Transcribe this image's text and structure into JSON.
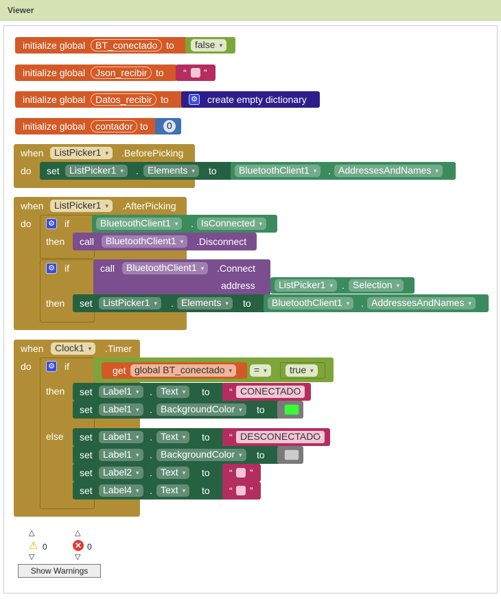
{
  "window": {
    "title": "Viewer"
  },
  "globals": [
    {
      "kw": "initialize global",
      "name": "BT_conectado",
      "to": "to",
      "value": "false"
    },
    {
      "kw": "initialize global",
      "name": "Json_recibir",
      "to": "to",
      "open_q": "“",
      "close_q": "”"
    },
    {
      "kw": "initialize global",
      "name": "Datos_recibir",
      "to": "to",
      "value": "create empty dictionary"
    },
    {
      "kw": "initialize global",
      "name": "contador",
      "to": "to",
      "value": "0"
    }
  ],
  "before": {
    "when": "when",
    "component": "ListPicker1",
    "event": ".BeforePicking",
    "do": "do",
    "set": "set",
    "set_comp": "ListPicker1",
    "dot": ".",
    "prop": "Elements",
    "to": "to",
    "src_comp": "BluetoothClient1",
    "src_prop": "AddressesAndNames"
  },
  "after": {
    "when": "when",
    "component": "ListPicker1",
    "event": ".AfterPicking",
    "do": "do",
    "if1": "if",
    "cond_comp": "BluetoothClient1",
    "dot": ".",
    "cond_prop": "IsConnected",
    "then1": "then",
    "call": "call",
    "call1_comp": "BluetoothClient1",
    "call1_method": ".Disconnect",
    "if2": "if",
    "call2_comp": "BluetoothClient1",
    "call2_method": ".Connect",
    "address": "address",
    "addr_comp": "ListPicker1",
    "addr_prop": "Selection",
    "then2": "then",
    "set": "set",
    "set_comp": "ListPicker1",
    "set_prop": "Elements",
    "to": "to",
    "src_comp": "BluetoothClient1",
    "src_prop": "AddressesAndNames"
  },
  "timer": {
    "when": "when",
    "component": "Clock1",
    "event": ".Timer",
    "do": "do",
    "if": "if",
    "get": "get",
    "get_var": "global BT_conectado",
    "op": "=",
    "val": "true",
    "then": "then",
    "else": "else",
    "set": "set",
    "dot": ".",
    "to": "to",
    "open_q": "“",
    "close_q": "”",
    "then_rows": [
      {
        "comp": "Label1",
        "prop": "Text",
        "text": "CONECTADO"
      },
      {
        "comp": "Label1",
        "prop": "BackgroundColor",
        "color": "#33ff33"
      }
    ],
    "else_rows": [
      {
        "comp": "Label1",
        "prop": "Text",
        "text": "DESCONECTADO"
      },
      {
        "comp": "Label1",
        "prop": "BackgroundColor",
        "color": "#cccccc"
      },
      {
        "comp": "Label2",
        "prop": "Text",
        "text": ""
      },
      {
        "comp": "Label4",
        "prop": "Text",
        "text": ""
      }
    ]
  },
  "warnings": {
    "warn_count": "0",
    "error_count": "0",
    "button": "Show Warnings"
  },
  "colors": {
    "variable": "#d35a26",
    "logic": "#7ea53a",
    "text": "#b32d5e",
    "dictionary": "#2d1e8c",
    "math": "#3f71b5",
    "event": "#b18e35",
    "component": "#3c8b5e",
    "component_dark": "#266141",
    "control": "#b18e35",
    "call": "#7b4e8f"
  }
}
